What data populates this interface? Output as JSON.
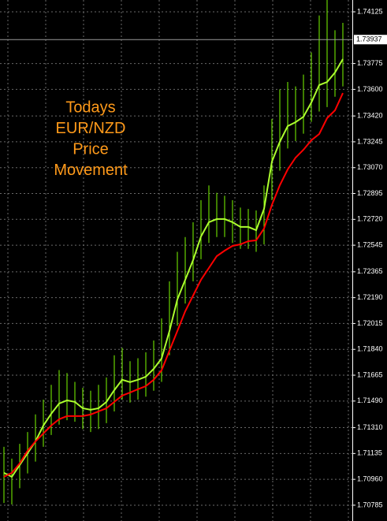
{
  "chart_data": {
    "type": "line",
    "annotation": [
      "Todays",
      "EUR/NZD",
      "Price",
      "Movement"
    ],
    "ylim": [
      1.70678,
      1.74205
    ],
    "yticks": [
      {
        "value": 1.74125,
        "label": "1.74125"
      },
      {
        "value": 1.73775,
        "label": "1.73775"
      },
      {
        "value": 1.736,
        "label": "1.73600"
      },
      {
        "value": 1.7342,
        "label": "1.73420"
      },
      {
        "value": 1.73245,
        "label": "1.73245"
      },
      {
        "value": 1.7307,
        "label": "1.73070"
      },
      {
        "value": 1.72895,
        "label": "1.72895"
      },
      {
        "value": 1.7272,
        "label": "1.72720"
      },
      {
        "value": 1.72545,
        "label": "1.72545"
      },
      {
        "value": 1.72365,
        "label": "1.72365"
      },
      {
        "value": 1.7219,
        "label": "1.72190"
      },
      {
        "value": 1.72015,
        "label": "1.72015"
      },
      {
        "value": 1.7184,
        "label": "1.71840"
      },
      {
        "value": 1.71665,
        "label": "1.71665"
      },
      {
        "value": 1.7149,
        "label": "1.71490"
      },
      {
        "value": 1.7131,
        "label": "1.71310"
      },
      {
        "value": 1.71135,
        "label": "1.71135"
      },
      {
        "value": 1.7096,
        "label": "1.70960"
      },
      {
        "value": 1.70785,
        "label": "1.70785"
      }
    ],
    "current_price": {
      "value": 1.73937,
      "label": "1.73937"
    },
    "grid": true,
    "bars": {
      "color": "#7cfc00",
      "high": [
        1.7118,
        1.711,
        1.712,
        1.7128,
        1.714,
        1.715,
        1.716,
        1.717,
        1.7168,
        1.7162,
        1.7158,
        1.7156,
        1.716,
        1.7165,
        1.718,
        1.7185,
        1.7176,
        1.7178,
        1.7182,
        1.719,
        1.7205,
        1.723,
        1.725,
        1.726,
        1.727,
        1.7285,
        1.7295,
        1.729,
        1.7288,
        1.7285,
        1.728,
        1.7279,
        1.7278,
        1.7295,
        1.734,
        1.736,
        1.7365,
        1.7362,
        1.737,
        1.7385,
        1.741,
        1.74205,
        1.74,
        1.7405
      ],
      "low": [
        1.708,
        1.7079,
        1.709,
        1.71,
        1.7108,
        1.7118,
        1.7126,
        1.7133,
        1.7136,
        1.7135,
        1.713,
        1.7128,
        1.713,
        1.7134,
        1.7142,
        1.715,
        1.7148,
        1.715,
        1.7152,
        1.7156,
        1.7162,
        1.718,
        1.72,
        1.7215,
        1.723,
        1.7245,
        1.7256,
        1.726,
        1.726,
        1.7256,
        1.7252,
        1.7252,
        1.725,
        1.7255,
        1.7285,
        1.7305,
        1.732,
        1.7325,
        1.733,
        1.7338,
        1.7345,
        1.7348,
        1.7355,
        1.7362
      ]
    },
    "series": [
      {
        "color": "#adff2f",
        "values": [
          1.71004,
          1.70977,
          1.71057,
          1.71137,
          1.71217,
          1.71324,
          1.71404,
          1.71473,
          1.71495,
          1.71484,
          1.71441,
          1.71431,
          1.71441,
          1.71484,
          1.71564,
          1.71634,
          1.71618,
          1.71634,
          1.71655,
          1.71708,
          1.71778,
          1.71964,
          1.72178,
          1.72311,
          1.72444,
          1.72604,
          1.72701,
          1.72722,
          1.72722,
          1.72701,
          1.72669,
          1.72669,
          1.72647,
          1.72791,
          1.73111,
          1.73245,
          1.73351,
          1.73378,
          1.73415,
          1.73511,
          1.73629,
          1.7365,
          1.73714,
          1.73805
        ]
      },
      {
        "color": "#ff0000",
        "values": [
          1.70977,
          1.71004,
          1.71068,
          1.71153,
          1.71217,
          1.71271,
          1.71324,
          1.71367,
          1.71388,
          1.71388,
          1.71388,
          1.71399,
          1.7142,
          1.71441,
          1.71484,
          1.71527,
          1.71548,
          1.7157,
          1.71591,
          1.71634,
          1.71698,
          1.71831,
          1.71964,
          1.72098,
          1.72204,
          1.72311,
          1.72391,
          1.72471,
          1.72508,
          1.7254,
          1.72551,
          1.72572,
          1.72578,
          1.72658,
          1.72818,
          1.72951,
          1.73058,
          1.73138,
          1.73191,
          1.73255,
          1.73298,
          1.73405,
          1.73458,
          1.73575
        ]
      }
    ]
  }
}
